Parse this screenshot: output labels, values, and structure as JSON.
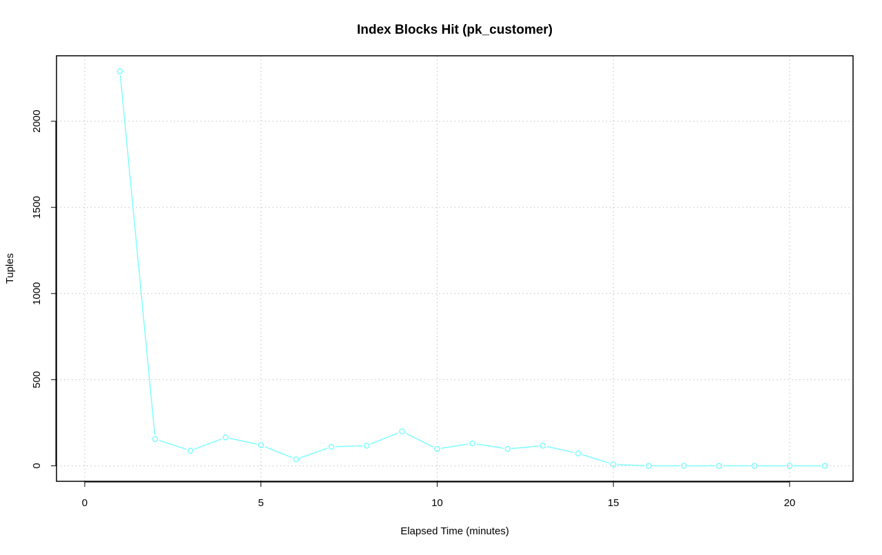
{
  "chart_data": {
    "type": "line",
    "title": "Index Blocks Hit (pk_customer)",
    "xlabel": "Elapsed Time (minutes)",
    "ylabel": "Tuples",
    "xlim": [
      -0.8,
      21.8
    ],
    "ylim": [
      -90,
      2380
    ],
    "x_ticks": [
      0,
      5,
      10,
      15,
      20
    ],
    "y_ticks": [
      0,
      500,
      1000,
      1500,
      2000
    ],
    "grid": true,
    "legend": "none",
    "series": [
      {
        "color": "#7ffcff",
        "marker": "circle-open",
        "x": [
          1,
          2,
          3,
          4,
          5,
          6,
          7,
          8,
          9,
          10,
          11,
          12,
          13,
          14,
          15,
          16,
          17,
          18,
          19,
          20,
          21
        ],
        "y": [
          2290,
          155,
          88,
          165,
          120,
          38,
          110,
          117,
          200,
          98,
          130,
          98,
          117,
          72,
          8,
          0,
          0,
          0,
          0,
          0,
          0
        ]
      }
    ]
  }
}
